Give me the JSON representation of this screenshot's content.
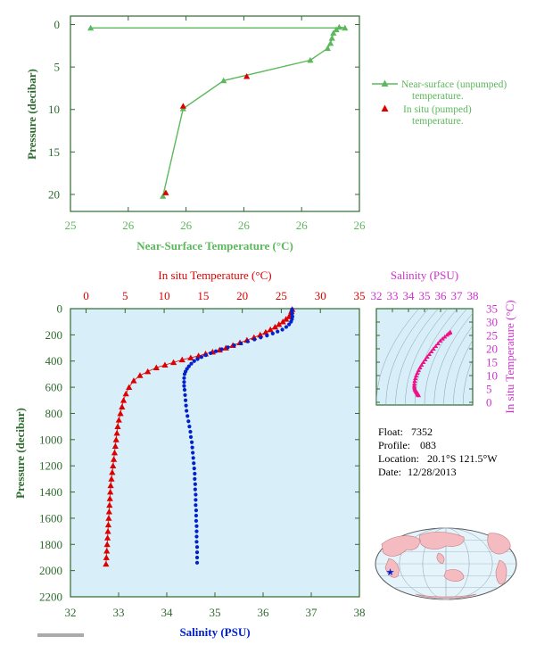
{
  "colors": {
    "green": "#5cb85c",
    "axis_green": "#2e6b2e",
    "red": "#dd0000",
    "blue": "#0022cc",
    "magenta": "#cc33cc",
    "pink": "#ee1188",
    "panel_bg": "#d8eef8",
    "land": "#f4bcc0",
    "ocean": "#e4f4fa"
  },
  "chart_data": [
    {
      "type": "line",
      "id": "near_surface",
      "xlabel": "Near-Surface Temperature (°C)",
      "ylabel": "Pressure (decibar)",
      "x_tick_labels": [
        "25",
        "26",
        "26",
        "26",
        "26",
        "26"
      ],
      "y_tick_labels": [
        "0",
        "5",
        "10",
        "15",
        "20"
      ],
      "xlim": [
        25.0,
        26.0
      ],
      "ylim": [
        22,
        -1
      ],
      "series": [
        {
          "name": "Near-surface (unpumped) temperature.",
          "marker": "triangle",
          "points": [
            {
              "x": 25.07,
              "y": 0.4
            },
            {
              "x": 25.95,
              "y": 0.4
            },
            {
              "x": 25.93,
              "y": 0.3
            },
            {
              "x": 25.92,
              "y": 0.6
            },
            {
              "x": 25.91,
              "y": 1.0
            },
            {
              "x": 25.905,
              "y": 1.6
            },
            {
              "x": 25.9,
              "y": 2.2
            },
            {
              "x": 25.89,
              "y": 2.8
            },
            {
              "x": 25.83,
              "y": 4.2
            },
            {
              "x": 25.53,
              "y": 6.6
            },
            {
              "x": 25.39,
              "y": 9.9
            },
            {
              "x": 25.32,
              "y": 20.2
            }
          ]
        },
        {
          "name": "In situ (pumped) temperature.",
          "marker": "triangle",
          "points": [
            {
              "x": 25.61,
              "y": 6.1
            },
            {
              "x": 25.39,
              "y": 9.6
            },
            {
              "x": 25.33,
              "y": 19.8
            }
          ]
        }
      ],
      "legend": [
        {
          "line1": "Near-surface (unpumped)",
          "line2": "temperature."
        },
        {
          "line1": "In situ (pumped)",
          "line2": "temperature."
        }
      ]
    },
    {
      "type": "scatter",
      "id": "profile",
      "top_xlabel": "In situ Temperature (°C)",
      "bottom_xlabel": "Salinity (PSU)",
      "ylabel": "Pressure (decibar)",
      "top_x_ticks": [
        "0",
        "5",
        "10",
        "15",
        "20",
        "25",
        "30",
        "35"
      ],
      "bottom_x_ticks": [
        "32",
        "33",
        "34",
        "35",
        "36",
        "37",
        "38"
      ],
      "y_ticks": [
        "0",
        "200",
        "400",
        "600",
        "800",
        "1000",
        "1200",
        "1400",
        "1600",
        "1800",
        "2000",
        "2200"
      ],
      "temp_xlim": [
        -2,
        35
      ],
      "sal_xlim": [
        32,
        38
      ],
      "ylim": [
        2200,
        0
      ],
      "temperature": [
        {
          "t": 26.4,
          "p": 5
        },
        {
          "t": 26.3,
          "p": 20
        },
        {
          "t": 26.2,
          "p": 40
        },
        {
          "t": 26.0,
          "p": 60
        },
        {
          "t": 25.6,
          "p": 80
        },
        {
          "t": 25.2,
          "p": 100
        },
        {
          "t": 24.7,
          "p": 120
        },
        {
          "t": 24.2,
          "p": 140
        },
        {
          "t": 23.6,
          "p": 160
        },
        {
          "t": 23.0,
          "p": 180
        },
        {
          "t": 22.3,
          "p": 200
        },
        {
          "t": 21.5,
          "p": 220
        },
        {
          "t": 20.6,
          "p": 240
        },
        {
          "t": 19.7,
          "p": 260
        },
        {
          "t": 18.8,
          "p": 280
        },
        {
          "t": 17.9,
          "p": 300
        },
        {
          "t": 17.1,
          "p": 315
        },
        {
          "t": 16.2,
          "p": 330
        },
        {
          "t": 15.3,
          "p": 345
        },
        {
          "t": 14.4,
          "p": 360
        },
        {
          "t": 13.4,
          "p": 375
        },
        {
          "t": 12.3,
          "p": 390
        },
        {
          "t": 11.2,
          "p": 410
        },
        {
          "t": 10.1,
          "p": 430
        },
        {
          "t": 9.0,
          "p": 450
        },
        {
          "t": 7.9,
          "p": 480
        },
        {
          "t": 6.9,
          "p": 510
        },
        {
          "t": 6.1,
          "p": 550
        },
        {
          "t": 5.5,
          "p": 600
        },
        {
          "t": 5.1,
          "p": 650
        },
        {
          "t": 4.8,
          "p": 700
        },
        {
          "t": 4.6,
          "p": 750
        },
        {
          "t": 4.4,
          "p": 800
        },
        {
          "t": 4.2,
          "p": 850
        },
        {
          "t": 4.05,
          "p": 900
        },
        {
          "t": 3.95,
          "p": 950
        },
        {
          "t": 3.85,
          "p": 1000
        },
        {
          "t": 3.75,
          "p": 1050
        },
        {
          "t": 3.65,
          "p": 1100
        },
        {
          "t": 3.55,
          "p": 1150
        },
        {
          "t": 3.45,
          "p": 1200
        },
        {
          "t": 3.35,
          "p": 1250
        },
        {
          "t": 3.25,
          "p": 1300
        },
        {
          "t": 3.15,
          "p": 1350
        },
        {
          "t": 3.1,
          "p": 1400
        },
        {
          "t": 3.05,
          "p": 1450
        },
        {
          "t": 3.0,
          "p": 1500
        },
        {
          "t": 2.95,
          "p": 1550
        },
        {
          "t": 2.9,
          "p": 1600
        },
        {
          "t": 2.85,
          "p": 1650
        },
        {
          "t": 2.8,
          "p": 1700
        },
        {
          "t": 2.75,
          "p": 1750
        },
        {
          "t": 2.7,
          "p": 1800
        },
        {
          "t": 2.65,
          "p": 1850
        },
        {
          "t": 2.6,
          "p": 1900
        },
        {
          "t": 2.55,
          "p": 1950
        }
      ],
      "salinity": [
        {
          "s": 36.6,
          "p": 5
        },
        {
          "s": 36.6,
          "p": 20
        },
        {
          "s": 36.6,
          "p": 40
        },
        {
          "s": 36.61,
          "p": 60
        },
        {
          "s": 36.6,
          "p": 80
        },
        {
          "s": 36.58,
          "p": 100
        },
        {
          "s": 36.54,
          "p": 120
        },
        {
          "s": 36.48,
          "p": 140
        },
        {
          "s": 36.4,
          "p": 160
        },
        {
          "s": 36.3,
          "p": 175
        },
        {
          "s": 36.2,
          "p": 190
        },
        {
          "s": 36.08,
          "p": 205
        },
        {
          "s": 35.95,
          "p": 220
        },
        {
          "s": 35.82,
          "p": 235
        },
        {
          "s": 35.68,
          "p": 250
        },
        {
          "s": 35.54,
          "p": 265
        },
        {
          "s": 35.4,
          "p": 280
        },
        {
          "s": 35.27,
          "p": 295
        },
        {
          "s": 35.14,
          "p": 310
        },
        {
          "s": 35.02,
          "p": 325
        },
        {
          "s": 34.91,
          "p": 340
        },
        {
          "s": 34.81,
          "p": 355
        },
        {
          "s": 34.72,
          "p": 370
        },
        {
          "s": 34.64,
          "p": 385
        },
        {
          "s": 34.57,
          "p": 400
        },
        {
          "s": 34.51,
          "p": 420
        },
        {
          "s": 34.46,
          "p": 440
        },
        {
          "s": 34.42,
          "p": 460
        },
        {
          "s": 34.39,
          "p": 480
        },
        {
          "s": 34.37,
          "p": 500
        },
        {
          "s": 34.36,
          "p": 530
        },
        {
          "s": 34.36,
          "p": 560
        },
        {
          "s": 34.36,
          "p": 590
        },
        {
          "s": 34.37,
          "p": 620
        },
        {
          "s": 34.38,
          "p": 660
        },
        {
          "s": 34.39,
          "p": 700
        },
        {
          "s": 34.4,
          "p": 740
        },
        {
          "s": 34.41,
          "p": 780
        },
        {
          "s": 34.43,
          "p": 820
        },
        {
          "s": 34.45,
          "p": 860
        },
        {
          "s": 34.47,
          "p": 900
        },
        {
          "s": 34.49,
          "p": 940
        },
        {
          "s": 34.5,
          "p": 980
        },
        {
          "s": 34.52,
          "p": 1020
        },
        {
          "s": 34.53,
          "p": 1060
        },
        {
          "s": 34.54,
          "p": 1100
        },
        {
          "s": 34.55,
          "p": 1140
        },
        {
          "s": 34.56,
          "p": 1180
        },
        {
          "s": 34.57,
          "p": 1220
        },
        {
          "s": 34.58,
          "p": 1260
        },
        {
          "s": 34.58,
          "p": 1300
        },
        {
          "s": 34.59,
          "p": 1340
        },
        {
          "s": 34.59,
          "p": 1380
        },
        {
          "s": 34.6,
          "p": 1420
        },
        {
          "s": 34.6,
          "p": 1460
        },
        {
          "s": 34.6,
          "p": 1500
        },
        {
          "s": 34.61,
          "p": 1540
        },
        {
          "s": 34.61,
          "p": 1580
        },
        {
          "s": 34.61,
          "p": 1620
        },
        {
          "s": 34.62,
          "p": 1660
        },
        {
          "s": 34.62,
          "p": 1700
        },
        {
          "s": 34.62,
          "p": 1740
        },
        {
          "s": 34.62,
          "p": 1780
        },
        {
          "s": 34.63,
          "p": 1820
        },
        {
          "s": 34.63,
          "p": 1860
        },
        {
          "s": 34.63,
          "p": 1900
        },
        {
          "s": 34.63,
          "p": 1940
        }
      ]
    },
    {
      "type": "scatter",
      "id": "ts_diagram",
      "xlabel": "Salinity (PSU)",
      "ylabel": "In situ Temperature (°C)",
      "x_ticks": [
        "32",
        "33",
        "34",
        "35",
        "36",
        "37",
        "38"
      ],
      "y_ticks": [
        "0",
        "5",
        "10",
        "15",
        "20",
        "25",
        "30",
        "35"
      ],
      "xlim": [
        32,
        38
      ],
      "ylim": [
        -1,
        35
      ],
      "points": [
        {
          "s": 34.63,
          "t": 2.6
        },
        {
          "s": 34.62,
          "t": 2.7
        },
        {
          "s": 34.61,
          "t": 2.8
        },
        {
          "s": 34.6,
          "t": 2.9
        },
        {
          "s": 34.59,
          "t": 3.0
        },
        {
          "s": 34.58,
          "t": 3.1
        },
        {
          "s": 34.57,
          "t": 3.25
        },
        {
          "s": 34.55,
          "t": 3.45
        },
        {
          "s": 34.53,
          "t": 3.65
        },
        {
          "s": 34.5,
          "t": 3.85
        },
        {
          "s": 34.47,
          "t": 4.1
        },
        {
          "s": 34.44,
          "t": 4.4
        },
        {
          "s": 34.41,
          "t": 4.7
        },
        {
          "s": 34.39,
          "t": 5.1
        },
        {
          "s": 34.37,
          "t": 5.6
        },
        {
          "s": 34.36,
          "t": 6.2
        },
        {
          "s": 34.37,
          "t": 7.0
        },
        {
          "s": 34.39,
          "t": 8.0
        },
        {
          "s": 34.43,
          "t": 9.0
        },
        {
          "s": 34.48,
          "t": 10.0
        },
        {
          "s": 34.55,
          "t": 11.0
        },
        {
          "s": 34.63,
          "t": 12.0
        },
        {
          "s": 34.72,
          "t": 13.0
        },
        {
          "s": 34.82,
          "t": 14.0
        },
        {
          "s": 34.93,
          "t": 15.0
        },
        {
          "s": 35.05,
          "t": 16.0
        },
        {
          "s": 35.17,
          "t": 17.0
        },
        {
          "s": 35.3,
          "t": 18.0
        },
        {
          "s": 35.43,
          "t": 19.0
        },
        {
          "s": 35.56,
          "t": 20.0
        },
        {
          "s": 35.7,
          "t": 21.0
        },
        {
          "s": 35.84,
          "t": 22.0
        },
        {
          "s": 35.98,
          "t": 23.0
        },
        {
          "s": 36.12,
          "t": 23.8
        },
        {
          "s": 36.26,
          "t": 24.5
        },
        {
          "s": 36.4,
          "t": 25.2
        },
        {
          "s": 36.5,
          "t": 25.7
        },
        {
          "s": 36.58,
          "t": 26.0
        },
        {
          "s": 36.6,
          "t": 26.3
        }
      ]
    }
  ],
  "info": {
    "float_label": "Float:",
    "float_value": "7352",
    "profile_label": "Profile:",
    "profile_value": "083",
    "location_label": "Location:",
    "location_value": "20.1°S  121.5°W",
    "date_label": "Date:",
    "date_value": "12/28/2013"
  },
  "map": {
    "marker_icon": "star-icon",
    "marker_lat": -20.1,
    "marker_lon": -121.5
  }
}
